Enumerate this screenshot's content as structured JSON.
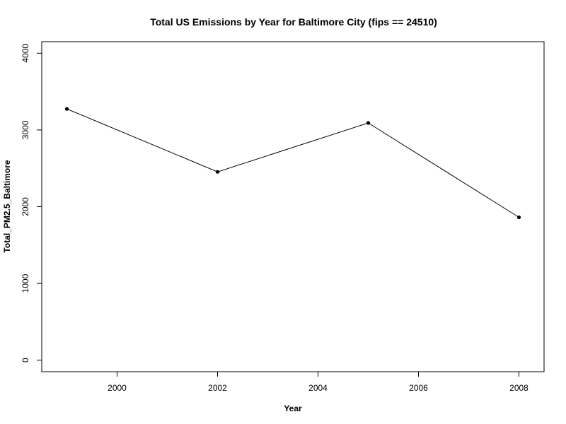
{
  "chart_data": {
    "type": "line",
    "title": "Total US Emissions by Year for Baltimore City (fips == 24510)",
    "xlabel": "Year",
    "ylabel": "Total_PM2.5_Baltimore",
    "x": [
      1999,
      2002,
      2005,
      2008
    ],
    "series": [
      {
        "values": [
          3274,
          2454,
          3091,
          1862
        ]
      }
    ],
    "xlim": [
      1998.5,
      2008.5
    ],
    "ylim": [
      -150,
      4150
    ],
    "x_ticks": [
      2000,
      2002,
      2004,
      2006,
      2008
    ],
    "y_ticks": [
      0,
      1000,
      2000,
      3000,
      4000
    ],
    "x_tick_labels": [
      "2000",
      "2002",
      "2004",
      "2006",
      "2008"
    ],
    "y_tick_labels": [
      "0",
      "1000",
      "2000",
      "3000",
      "4000"
    ],
    "grid": false,
    "markers": true,
    "line_color": "#000000",
    "marker_color": "#000000"
  }
}
